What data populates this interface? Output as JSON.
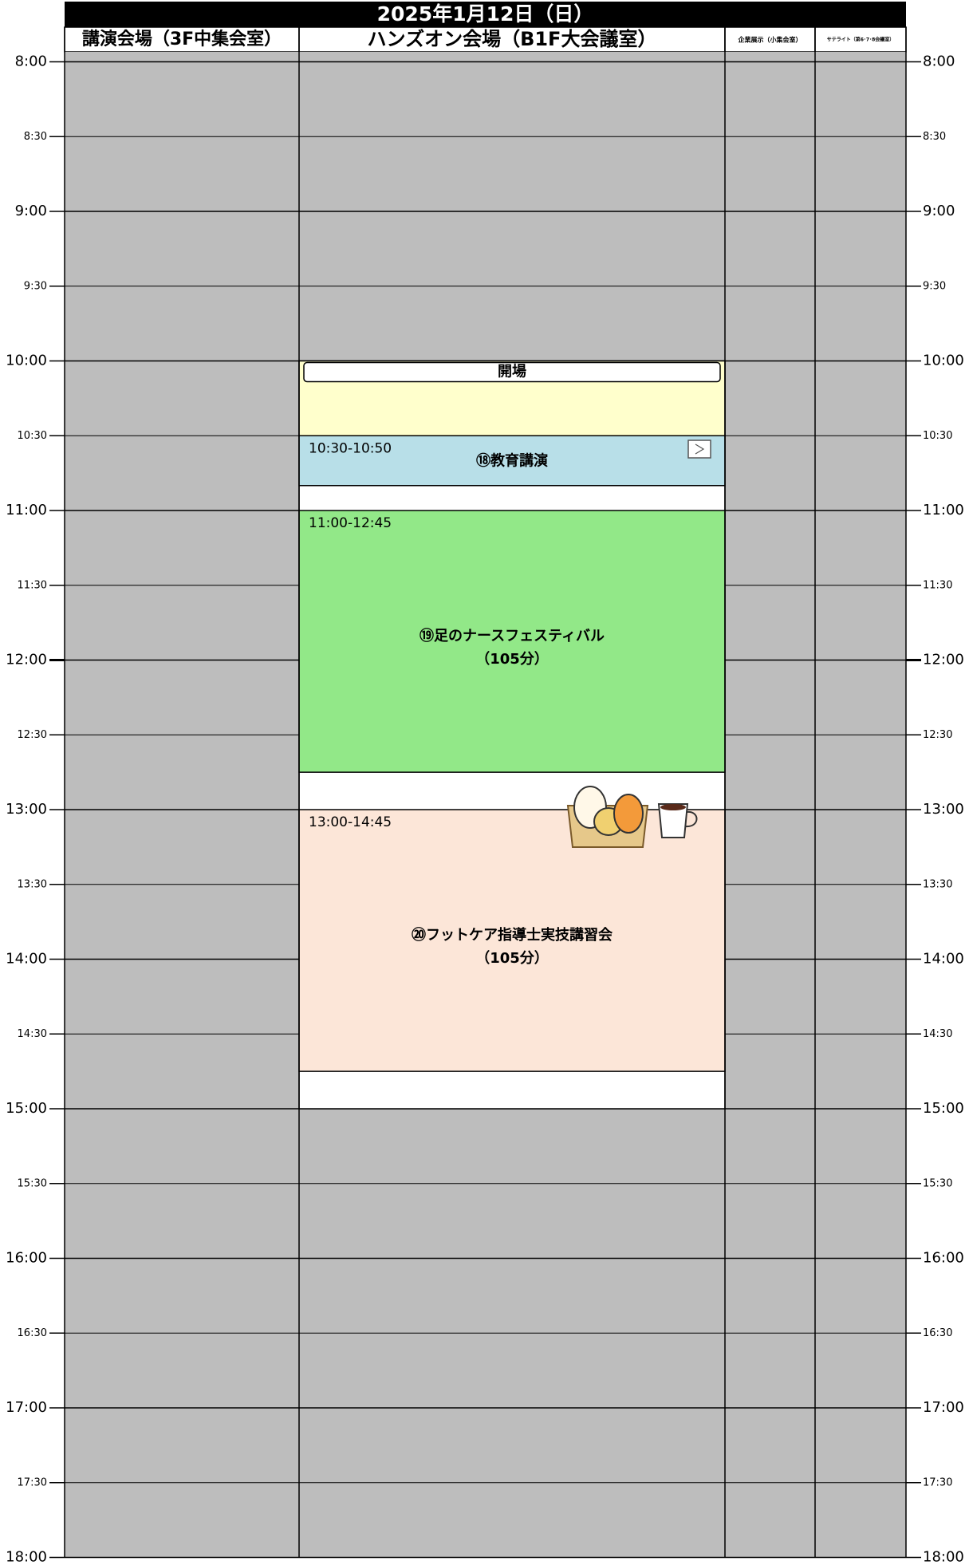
{
  "title": "2025年1月12日（日）",
  "columns": [
    "講演会場（3F中集会室）",
    "ハンズオン会場（B1F大会議室）",
    "企業展示（小集会室）",
    "サテライト（第6･7･8会議室）"
  ],
  "times": [
    "8:00",
    "8:30",
    "9:00",
    "9:30",
    "10:00",
    "10:30",
    "11:00",
    "11:30",
    "12:00",
    "12:30",
    "13:00",
    "13:30",
    "14:00",
    "14:30",
    "15:00",
    "15:30",
    "16:00",
    "16:30",
    "17:00",
    "17:30",
    "18:00"
  ],
  "events": [
    {
      "label": "開場"
    },
    {
      "time": "10:30-10:50",
      "lines": [
        "⑱教育講演"
      ]
    },
    {
      "time": "11:00-12:45",
      "lines": [
        "⑲足のナースフェスティバル",
        "（105分）"
      ]
    },
    {
      "time": "13:00-14:45",
      "lines": [
        "⑳フットケア指導士実技講習会",
        "（105分）"
      ]
    }
  ]
}
